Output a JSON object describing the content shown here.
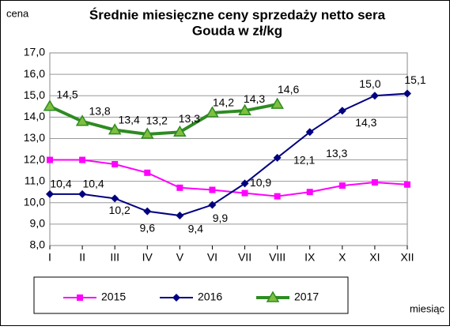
{
  "chart_data": {
    "type": "line",
    "title": [
      "Średnie miesięczne ceny sprzedaży netto sera",
      "Gouda w zł/kg"
    ],
    "y_label": "cena",
    "x_label": "miesiąc",
    "categories": [
      "I",
      "II",
      "III",
      "IV",
      "V",
      "VI",
      "VII",
      "VIII",
      "IX",
      "X",
      "XI",
      "XII"
    ],
    "ylim": [
      8,
      17
    ],
    "yticks": [
      {
        "value": 8,
        "label": "8,0"
      },
      {
        "value": 9,
        "label": "9,0"
      },
      {
        "value": 10,
        "label": "10,0"
      },
      {
        "value": 11,
        "label": "11,0"
      },
      {
        "value": 12,
        "label": "12,0"
      },
      {
        "value": 13,
        "label": "13,0"
      },
      {
        "value": 14,
        "label": "14,0"
      },
      {
        "value": 15,
        "label": "15,0"
      },
      {
        "value": 16,
        "label": "16,0"
      },
      {
        "value": 17,
        "label": "17,0"
      }
    ],
    "grid": true,
    "legend": "bottom",
    "series": [
      {
        "name": "2015",
        "color": "#ff00ff",
        "marker": "square",
        "values": [
          12.0,
          12.0,
          11.8,
          11.4,
          10.7,
          10.6,
          10.45,
          10.3,
          10.5,
          10.8,
          10.95,
          10.85
        ]
      },
      {
        "name": "2016",
        "color": "#000080",
        "marker": "diamond",
        "values": [
          10.4,
          10.4,
          10.2,
          9.6,
          9.4,
          9.9,
          10.9,
          12.1,
          13.3,
          14.3,
          15.0,
          15.1
        ],
        "value_labels": [
          "10,4",
          "10,4",
          "10,2",
          "9,6",
          "9,4",
          "9,9",
          "10,9",
          "12,1",
          "13,3",
          "14,3",
          "15,0",
          "15,1"
        ]
      },
      {
        "name": "2017",
        "color": "#2e8b22",
        "marker": "triangle",
        "values": [
          14.5,
          13.8,
          13.4,
          13.2,
          13.3,
          14.2,
          14.3,
          14.6,
          null,
          null,
          null,
          null
        ],
        "value_labels": [
          "14,5",
          "13,8",
          "13,4",
          "13,2",
          "13,3",
          "14,2",
          "14,3",
          "14,6",
          null,
          null,
          null,
          null
        ]
      }
    ]
  }
}
